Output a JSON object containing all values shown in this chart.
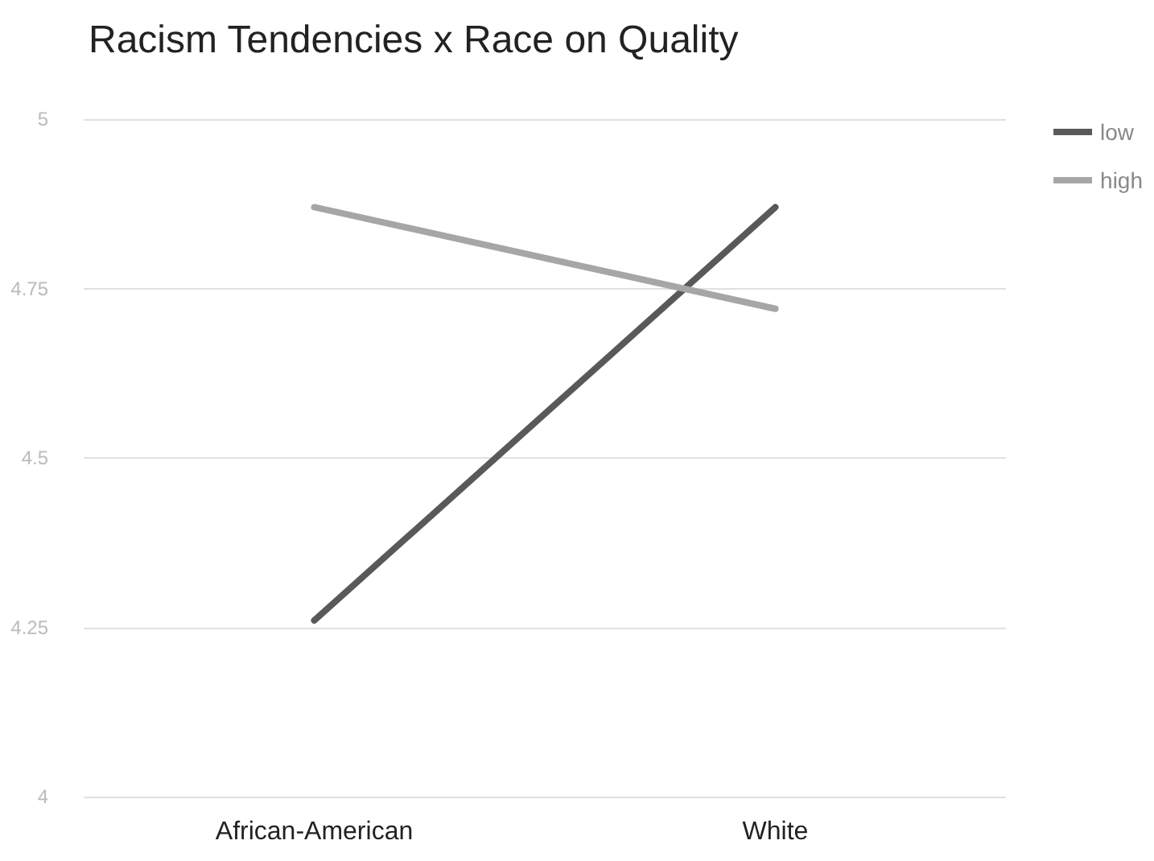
{
  "chart_data": {
    "type": "line",
    "title": "Racism Tendencies x Race on Quality",
    "categories": [
      "African-American",
      "White"
    ],
    "series": [
      {
        "name": "low",
        "color": "#595959",
        "values": [
          4.26,
          4.87
        ]
      },
      {
        "name": "high",
        "color": "#a6a6a6",
        "values": [
          4.87,
          4.72
        ]
      }
    ],
    "ylim": [
      4,
      5
    ],
    "yticks": [
      4,
      4.25,
      4.5,
      4.75,
      5
    ],
    "grid": "y",
    "legend": "top right",
    "marker": "none",
    "line_style": "solid"
  }
}
